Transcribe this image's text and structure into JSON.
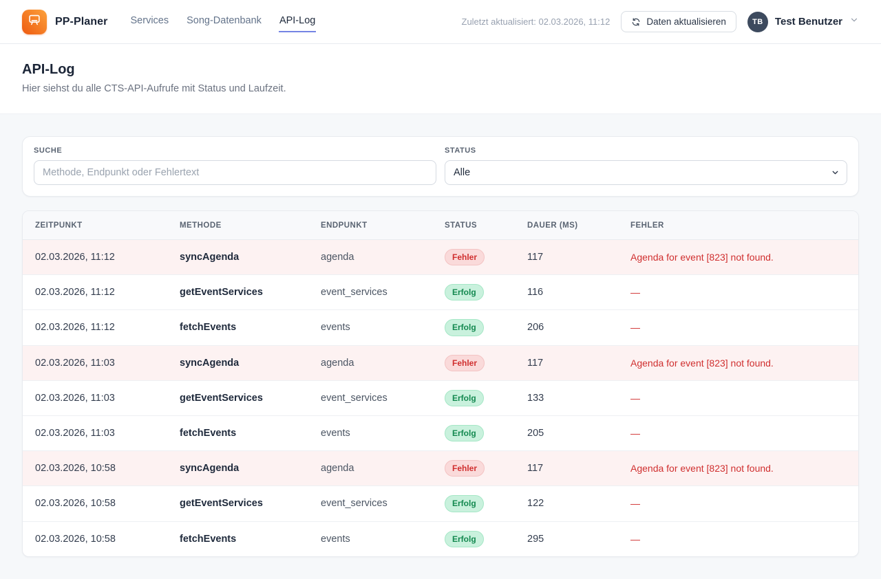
{
  "brand": {
    "name": "PP-Planer"
  },
  "nav": {
    "items": [
      {
        "label": "Services",
        "active": false
      },
      {
        "label": "Song-Datenbank",
        "active": false
      },
      {
        "label": "API-Log",
        "active": true
      }
    ]
  },
  "topbar": {
    "last_updated": "Zuletzt aktualisiert: 02.03.2026, 11:12",
    "refresh_label": "Daten aktualisieren",
    "user": {
      "initials": "TB",
      "name": "Test Benutzer"
    }
  },
  "page": {
    "title": "API-Log",
    "subtitle": "Hier siehst du alle CTS-API-Aufrufe mit Status und Laufzeit."
  },
  "filters": {
    "search": {
      "label": "Suche",
      "placeholder": "Methode, Endpunkt oder Fehlertext",
      "value": ""
    },
    "status": {
      "label": "Status",
      "selected": "Alle"
    }
  },
  "table": {
    "columns": [
      "Zeitpunkt",
      "Methode",
      "Endpunkt",
      "Status",
      "Dauer (ms)",
      "Fehler"
    ],
    "rows": [
      {
        "zeitpunkt": "02.03.2026, 11:12",
        "methode": "syncAgenda",
        "endpunkt": "agenda",
        "status": "Fehler",
        "dauer": "117",
        "fehler": "Agenda for event [823] not found."
      },
      {
        "zeitpunkt": "02.03.2026, 11:12",
        "methode": "getEventServices",
        "endpunkt": "event_services",
        "status": "Erfolg",
        "dauer": "116",
        "fehler": "—"
      },
      {
        "zeitpunkt": "02.03.2026, 11:12",
        "methode": "fetchEvents",
        "endpunkt": "events",
        "status": "Erfolg",
        "dauer": "206",
        "fehler": "—"
      },
      {
        "zeitpunkt": "02.03.2026, 11:03",
        "methode": "syncAgenda",
        "endpunkt": "agenda",
        "status": "Fehler",
        "dauer": "117",
        "fehler": "Agenda for event [823] not found."
      },
      {
        "zeitpunkt": "02.03.2026, 11:03",
        "methode": "getEventServices",
        "endpunkt": "event_services",
        "status": "Erfolg",
        "dauer": "133",
        "fehler": "—"
      },
      {
        "zeitpunkt": "02.03.2026, 11:03",
        "methode": "fetchEvents",
        "endpunkt": "events",
        "status": "Erfolg",
        "dauer": "205",
        "fehler": "—"
      },
      {
        "zeitpunkt": "02.03.2026, 10:58",
        "methode": "syncAgenda",
        "endpunkt": "agenda",
        "status": "Fehler",
        "dauer": "117",
        "fehler": "Agenda for event [823] not found."
      },
      {
        "zeitpunkt": "02.03.2026, 10:58",
        "methode": "getEventServices",
        "endpunkt": "event_services",
        "status": "Erfolg",
        "dauer": "122",
        "fehler": "—"
      },
      {
        "zeitpunkt": "02.03.2026, 10:58",
        "methode": "fetchEvents",
        "endpunkt": "events",
        "status": "Erfolg",
        "dauer": "295",
        "fehler": "—"
      }
    ],
    "status_styles": {
      "Fehler": {
        "badge_bg": "#fadada",
        "badge_text": "#d02f2f",
        "row_bg": "#fdf2f2"
      },
      "Erfolg": {
        "badge_bg": "#c9f1dd",
        "badge_text": "#148950",
        "row_bg": "#ffffff"
      }
    }
  },
  "colors": {
    "accent_underline": "#7584e4",
    "logo_orange": "#f0610f",
    "error_text": "#d02f2f",
    "page_bg": "#f6f8fa"
  }
}
